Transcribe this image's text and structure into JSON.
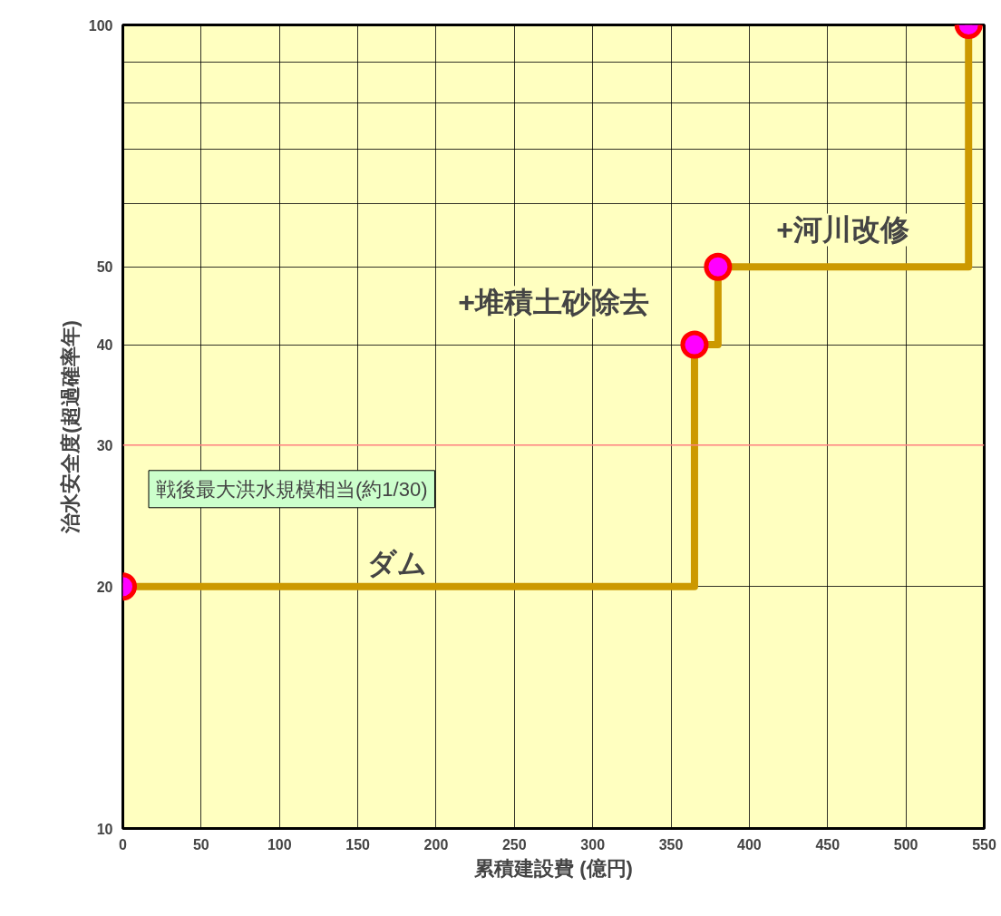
{
  "chart_data": {
    "type": "step",
    "xlabel": "累積建設費 (億円)",
    "ylabel": "治水安全度(超過確率年)",
    "x": [
      0,
      365,
      380,
      540
    ],
    "series": [
      {
        "color": "#cc9900",
        "values": [
          20,
          40,
          50,
          100
        ]
      }
    ],
    "marker": "circle",
    "log": "y",
    "grid": true,
    "xlim": [
      0,
      550
    ],
    "xticks": [
      0,
      50,
      100,
      150,
      200,
      250,
      300,
      350,
      400,
      450,
      500,
      550
    ],
    "ylim": [
      10,
      100
    ],
    "yticks": [
      10,
      20,
      30,
      40,
      50,
      {
        "value": 60,
        "label": null
      },
      {
        "value": 70,
        "label": null
      },
      {
        "value": 80,
        "label": null
      },
      {
        "value": 90,
        "label": null
      },
      100
    ],
    "ref_lines": [
      {
        "axis": "y",
        "value": 30,
        "label": "戦後最大洪水規模相当(約1/30)",
        "color": "#ff8080"
      }
    ],
    "annotations": [
      "ダム",
      "+堆積土砂除去",
      "+河川改修"
    ]
  }
}
